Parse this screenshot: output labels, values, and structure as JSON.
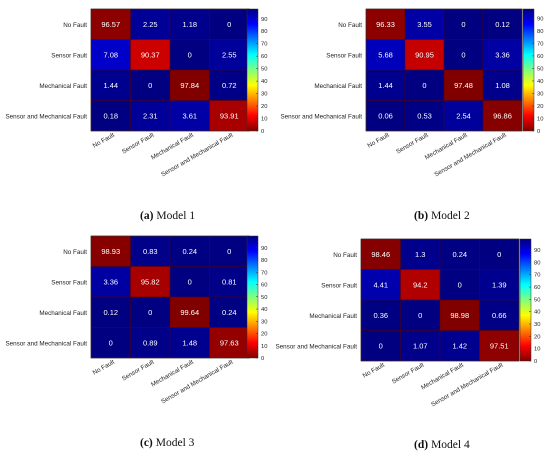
{
  "chart_data": [
    {
      "type": "heatmap",
      "caption_letter": "(a)",
      "caption_text": "Model 1",
      "row_labels": [
        "No Fault",
        "Sensor Fault",
        "Mechanical Fault",
        "Sensor and Mechanical Fault"
      ],
      "col_labels": [
        "No Fault",
        "Sensor Fault",
        "Mechanical Fault",
        "Sensor and Mechanical Fault"
      ],
      "values": [
        [
          96.57,
          2.25,
          1.18,
          0
        ],
        [
          7.08,
          90.37,
          0,
          2.55
        ],
        [
          1.44,
          0,
          97.84,
          0.72
        ],
        [
          0.18,
          2.31,
          3.61,
          93.91
        ]
      ],
      "colorbar_ticks": [
        "0",
        "10",
        "20",
        "30",
        "40",
        "50",
        "60",
        "70",
        "80",
        "90"
      ],
      "colorbar_range": [
        0,
        97.84
      ]
    },
    {
      "type": "heatmap",
      "caption_letter": "(b)",
      "caption_text": "Model 2",
      "row_labels": [
        "No Fault",
        "Sensor Fault",
        "Mechanical Fault",
        "Sensor and Mechanical Fault"
      ],
      "col_labels": [
        "No Fault",
        "Sensor Fault",
        "Mechanical Fault",
        "Sensor and Mechanical Fault"
      ],
      "values": [
        [
          96.33,
          3.55,
          0,
          0.12
        ],
        [
          5.68,
          90.95,
          0,
          3.36
        ],
        [
          1.44,
          0,
          97.48,
          1.08
        ],
        [
          0.06,
          0.53,
          2.54,
          96.86
        ]
      ],
      "colorbar_ticks": [
        "0",
        "10",
        "20",
        "30",
        "40",
        "50",
        "60",
        "70",
        "80",
        "90"
      ],
      "colorbar_range": [
        0,
        97.48
      ]
    },
    {
      "type": "heatmap",
      "caption_letter": "(c)",
      "caption_text": "Model 3",
      "row_labels": [
        "No Fault",
        "Sensor Fault",
        "Mechanical Fault",
        "Sensor and Mechanical Fault"
      ],
      "col_labels": [
        "No Fault",
        "Sensor Fault",
        "Mechanical Fault",
        "Sensor and Mechanical Fault"
      ],
      "values": [
        [
          98.93,
          0.83,
          0.24,
          0
        ],
        [
          3.36,
          95.82,
          0,
          0.81
        ],
        [
          0.12,
          0,
          99.64,
          0.24
        ],
        [
          0,
          0.89,
          1.48,
          97.63
        ]
      ],
      "colorbar_ticks": [
        "0",
        "10",
        "20",
        "30",
        "40",
        "50",
        "60",
        "70",
        "80",
        "90"
      ],
      "colorbar_range": [
        0,
        99.64
      ]
    },
    {
      "type": "heatmap",
      "caption_letter": "(d)",
      "caption_text": "Model 4",
      "row_labels": [
        "No Fault",
        "Sensor Fault",
        "Mechanical Fault",
        "Sensor and Mechanical Fault"
      ],
      "col_labels": [
        "No Fault",
        "Sensor Fault",
        "Mechanical Fault",
        "Sensor and Mechanical Fault"
      ],
      "values": [
        [
          98.46,
          1.3,
          0.24,
          0
        ],
        [
          4.41,
          94.2,
          0,
          1.39
        ],
        [
          0.36,
          0,
          98.98,
          0.66
        ],
        [
          0,
          1.07,
          1.42,
          97.51
        ]
      ],
      "colorbar_ticks": [
        "0",
        "10",
        "20",
        "30",
        "40",
        "50",
        "60",
        "70",
        "80",
        "90"
      ],
      "colorbar_range": [
        0,
        98.98
      ]
    }
  ]
}
